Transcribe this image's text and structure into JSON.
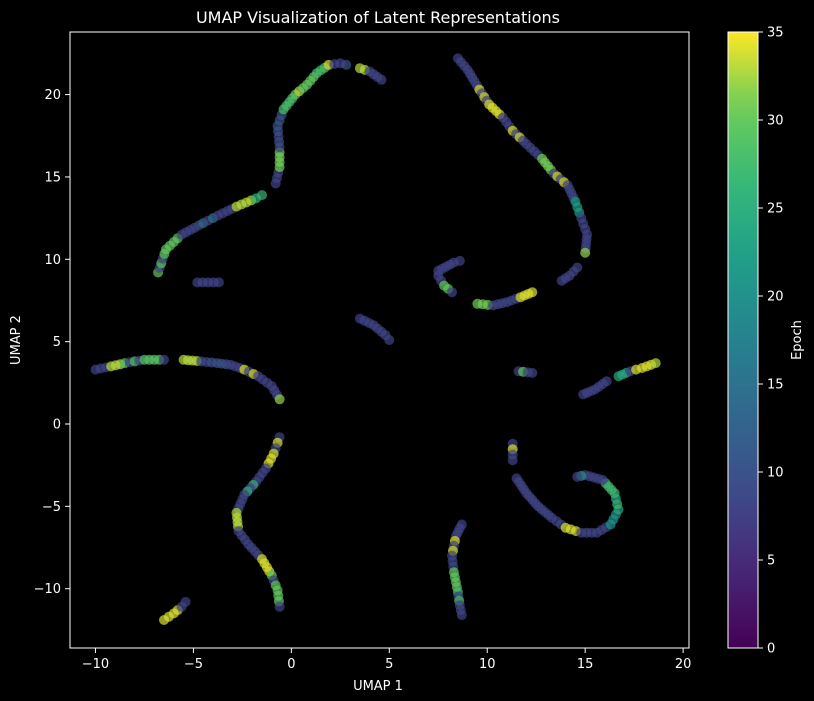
{
  "chart_data": {
    "type": "scatter",
    "title": "UMAP Visualization of Latent Representations",
    "xlabel": "UMAP 1",
    "ylabel": "UMAP 2",
    "xlim": [
      -11.3,
      20.3
    ],
    "ylim": [
      -13.6,
      23.8
    ],
    "xticks": [
      -10,
      -5,
      0,
      5,
      10,
      15,
      20
    ],
    "yticks": [
      -10,
      -5,
      0,
      5,
      10,
      15,
      20
    ],
    "grid": false,
    "background": "#000000",
    "colorbar": {
      "label": "Epoch",
      "range": [
        0,
        35
      ],
      "ticks": [
        0,
        5,
        10,
        15,
        20,
        25,
        30,
        35
      ],
      "colormap": "viridis"
    },
    "marker_alpha": 0.7,
    "curves": [
      {
        "points": [
          [
            -6.8,
            9.2
          ],
          [
            -6.4,
            10.6
          ],
          [
            -5.6,
            11.5
          ],
          [
            -4.5,
            12.2
          ],
          [
            -3.5,
            12.8
          ],
          [
            -2.8,
            13.2
          ],
          [
            -1.8,
            13.7
          ],
          [
            -1.5,
            13.9
          ]
        ],
        "epochs": [
          8,
          30,
          8,
          15,
          8,
          33,
          8,
          26
        ]
      },
      {
        "points": [
          [
            -0.8,
            14.6
          ],
          [
            -0.6,
            15.6
          ],
          [
            -0.6,
            16.8
          ],
          [
            -0.7,
            18.1
          ],
          [
            -0.4,
            19.1
          ],
          [
            0.2,
            20.0
          ],
          [
            0.8,
            20.6
          ],
          [
            1.3,
            21.3
          ],
          [
            1.9,
            21.8
          ],
          [
            2.5,
            21.9
          ],
          [
            2.8,
            21.8
          ]
        ],
        "epochs": [
          8,
          31,
          8,
          10,
          28,
          33,
          30,
          28,
          34,
          8,
          10
        ]
      },
      {
        "points": [
          [
            3.5,
            21.6
          ],
          [
            4.0,
            21.4
          ],
          [
            4.6,
            20.9
          ]
        ],
        "epochs": [
          33,
          8,
          8
        ]
      },
      {
        "points": [
          [
            -4.8,
            8.6
          ],
          [
            -3.7,
            8.6
          ]
        ],
        "epochs": [
          8,
          8
        ]
      },
      {
        "points": [
          [
            8.5,
            22.2
          ],
          [
            9.0,
            21.5
          ],
          [
            9.6,
            20.3
          ],
          [
            10.1,
            19.4
          ],
          [
            10.8,
            18.6
          ],
          [
            11.3,
            17.8
          ],
          [
            12.0,
            17.0
          ],
          [
            12.8,
            16.1
          ],
          [
            13.4,
            15.2
          ],
          [
            14.1,
            14.5
          ],
          [
            14.5,
            13.5
          ],
          [
            14.8,
            12.5
          ],
          [
            15.1,
            11.5
          ],
          [
            15.0,
            10.4
          ]
        ],
        "epochs": [
          8,
          8,
          8,
          34,
          8,
          34,
          8,
          31,
          34,
          8,
          22,
          8,
          8,
          32
        ]
      },
      {
        "points": [
          [
            14.6,
            9.5
          ],
          [
            14.2,
            9.0
          ],
          [
            13.8,
            8.7
          ]
        ],
        "epochs": [
          8,
          8,
          8
        ]
      },
      {
        "points": [
          [
            7.5,
            9.3
          ],
          [
            8.3,
            9.8
          ],
          [
            8.6,
            9.9
          ]
        ],
        "epochs": [
          8,
          8,
          8
        ]
      },
      {
        "points": [
          [
            7.5,
            9.0
          ],
          [
            7.8,
            8.4
          ],
          [
            8.2,
            8.0
          ]
        ],
        "epochs": [
          8,
          30,
          8
        ]
      },
      {
        "points": [
          [
            9.5,
            7.3
          ],
          [
            10.3,
            7.2
          ],
          [
            11.0,
            7.4
          ],
          [
            11.7,
            7.7
          ],
          [
            12.3,
            8.0
          ]
        ],
        "epochs": [
          31,
          8,
          8,
          34,
          34
        ]
      },
      {
        "points": [
          [
            3.5,
            6.4
          ],
          [
            4.2,
            6.0
          ],
          [
            4.8,
            5.4
          ],
          [
            5.0,
            5.1
          ]
        ],
        "epochs": [
          8,
          8,
          8,
          8
        ]
      },
      {
        "points": [
          [
            -10.0,
            3.3
          ],
          [
            -9.2,
            3.5
          ],
          [
            -8.5,
            3.7
          ],
          [
            -7.5,
            3.9
          ],
          [
            -6.5,
            3.9
          ]
        ],
        "epochs": [
          8,
          33,
          8,
          29,
          8
        ]
      },
      {
        "points": [
          [
            -5.5,
            3.9
          ],
          [
            -4.6,
            3.8
          ],
          [
            -3.8,
            3.7
          ],
          [
            -3.1,
            3.6
          ],
          [
            -2.4,
            3.3
          ],
          [
            -1.7,
            2.9
          ],
          [
            -1.0,
            2.3
          ],
          [
            -0.6,
            1.5
          ]
        ],
        "epochs": [
          33,
          8,
          10,
          8,
          34,
          8,
          8,
          32
        ]
      },
      {
        "points": [
          [
            11.6,
            3.2
          ],
          [
            12.3,
            3.1
          ]
        ],
        "epochs": [
          30,
          8
        ]
      },
      {
        "points": [
          [
            14.9,
            1.8
          ],
          [
            15.5,
            2.1
          ],
          [
            16.1,
            2.6
          ]
        ],
        "epochs": [
          8,
          8,
          8
        ]
      },
      {
        "points": [
          [
            16.7,
            2.9
          ],
          [
            17.3,
            3.2
          ],
          [
            17.9,
            3.4
          ],
          [
            18.6,
            3.7
          ]
        ],
        "epochs": [
          24,
          8,
          34,
          33
        ]
      },
      {
        "points": [
          [
            -0.6,
            -0.8
          ],
          [
            -0.9,
            -1.8
          ],
          [
            -1.3,
            -2.7
          ],
          [
            -1.8,
            -3.5
          ],
          [
            -2.4,
            -4.3
          ],
          [
            -2.8,
            -5.4
          ],
          [
            -2.7,
            -6.5
          ],
          [
            -2.2,
            -7.3
          ],
          [
            -1.5,
            -8.2
          ],
          [
            -1.0,
            -9.2
          ],
          [
            -0.7,
            -10.1
          ],
          [
            -0.6,
            -11.1
          ]
        ],
        "epochs": [
          8,
          34,
          8,
          26,
          8,
          33,
          8,
          8,
          34,
          8,
          30,
          8
        ]
      },
      {
        "points": [
          [
            -6.5,
            -11.9
          ],
          [
            -6.0,
            -11.5
          ],
          [
            -5.6,
            -11.1
          ],
          [
            -5.4,
            -10.8
          ]
        ],
        "epochs": [
          34,
          34,
          34,
          8
        ]
      },
      {
        "points": [
          [
            8.7,
            -6.1
          ],
          [
            8.4,
            -6.8
          ],
          [
            8.2,
            -8.0
          ],
          [
            8.3,
            -9.0
          ],
          [
            8.5,
            -10.2
          ],
          [
            8.6,
            -11.0
          ],
          [
            8.7,
            -11.6
          ]
        ],
        "epochs": [
          8,
          34,
          8,
          30,
          28,
          8,
          8
        ]
      },
      {
        "points": [
          [
            11.3,
            -1.2
          ],
          [
            11.3,
            -2.2
          ]
        ],
        "epochs": [
          34,
          8
        ]
      },
      {
        "points": [
          [
            11.5,
            -3.3
          ],
          [
            12.0,
            -4.2
          ],
          [
            12.6,
            -5.0
          ],
          [
            13.3,
            -5.7
          ],
          [
            14.0,
            -6.3
          ],
          [
            14.8,
            -6.6
          ],
          [
            15.6,
            -6.6
          ],
          [
            16.3,
            -6.1
          ],
          [
            16.7,
            -5.2
          ],
          [
            16.5,
            -4.2
          ],
          [
            15.9,
            -3.4
          ],
          [
            15.0,
            -3.1
          ],
          [
            14.6,
            -3.2
          ]
        ],
        "epochs": [
          8,
          8,
          8,
          8,
          34,
          8,
          8,
          20,
          24,
          27,
          8,
          20,
          8
        ]
      }
    ]
  }
}
